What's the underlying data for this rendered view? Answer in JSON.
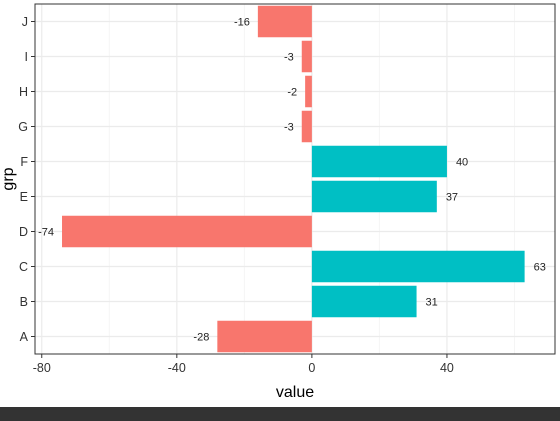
{
  "chart_data": {
    "type": "bar",
    "orientation": "horizontal",
    "title": "",
    "xlabel": "value",
    "ylabel": "grp",
    "categories": [
      "A",
      "B",
      "C",
      "D",
      "E",
      "F",
      "G",
      "H",
      "I",
      "J"
    ],
    "values": [
      -28,
      31,
      63,
      -74,
      37,
      40,
      -3,
      -2,
      -3,
      -16
    ],
    "value_labels": [
      "-28",
      "31",
      "63",
      "-74",
      "37",
      "40",
      "-3",
      "-2",
      "-3",
      "-16"
    ],
    "xlim": [
      -82,
      72
    ],
    "xticks": [
      -80,
      -40,
      0,
      40
    ],
    "xtick_labels": [
      "-80",
      "-40",
      "0",
      "40"
    ],
    "grid": true,
    "legend": "none",
    "colors": {
      "negative": "#F8766D",
      "positive": "#00BFC4",
      "grid_major": "#EBEBEB",
      "grid_minor": "#F5F5F5",
      "panel_border": "#333333",
      "text": "#333333",
      "axis_title": "#000000",
      "bottom_bar": "#333333"
    }
  }
}
